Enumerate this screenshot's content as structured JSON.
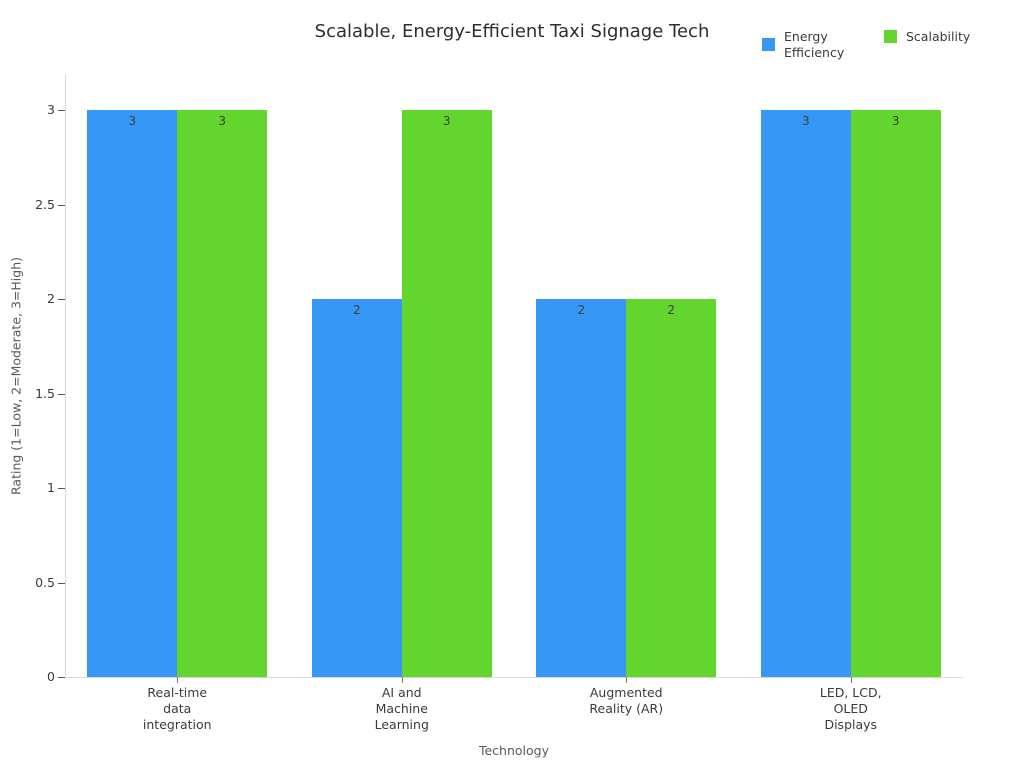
{
  "chart_data": {
    "type": "bar",
    "title": "Scalable, Energy-Efficient Taxi Signage Tech",
    "xlabel": "Technology",
    "ylabel": "Rating (1=Low, 2=Moderate, 3=High)",
    "categories": [
      "Real-time\ndata\nintegration",
      "AI and\nMachine\nLearning",
      "Augmented\nReality (AR)",
      "LED, LCD,\nOLED\nDisplays"
    ],
    "series": [
      {
        "name": "Energy Efficiency",
        "color": "#3697f4",
        "values": [
          3,
          2,
          2,
          3
        ]
      },
      {
        "name": "Scalability",
        "color": "#62d52e",
        "values": [
          3,
          3,
          2,
          3
        ]
      }
    ],
    "yticks": [
      0,
      0.5,
      1,
      1.5,
      2,
      2.5,
      3
    ],
    "ylim": [
      0,
      3.16
    ],
    "grid": false,
    "legend_position": "top-right",
    "value_labels": "inside-top",
    "style": {
      "axis_line_color": "#d9d9d9",
      "tick_color": "#555555",
      "title_color": "#2e2e2e",
      "axis_title_color": "#5a5a5a",
      "tick_label_color": "#3b3b3b",
      "bar_value_color": "#3d3d3d"
    }
  }
}
